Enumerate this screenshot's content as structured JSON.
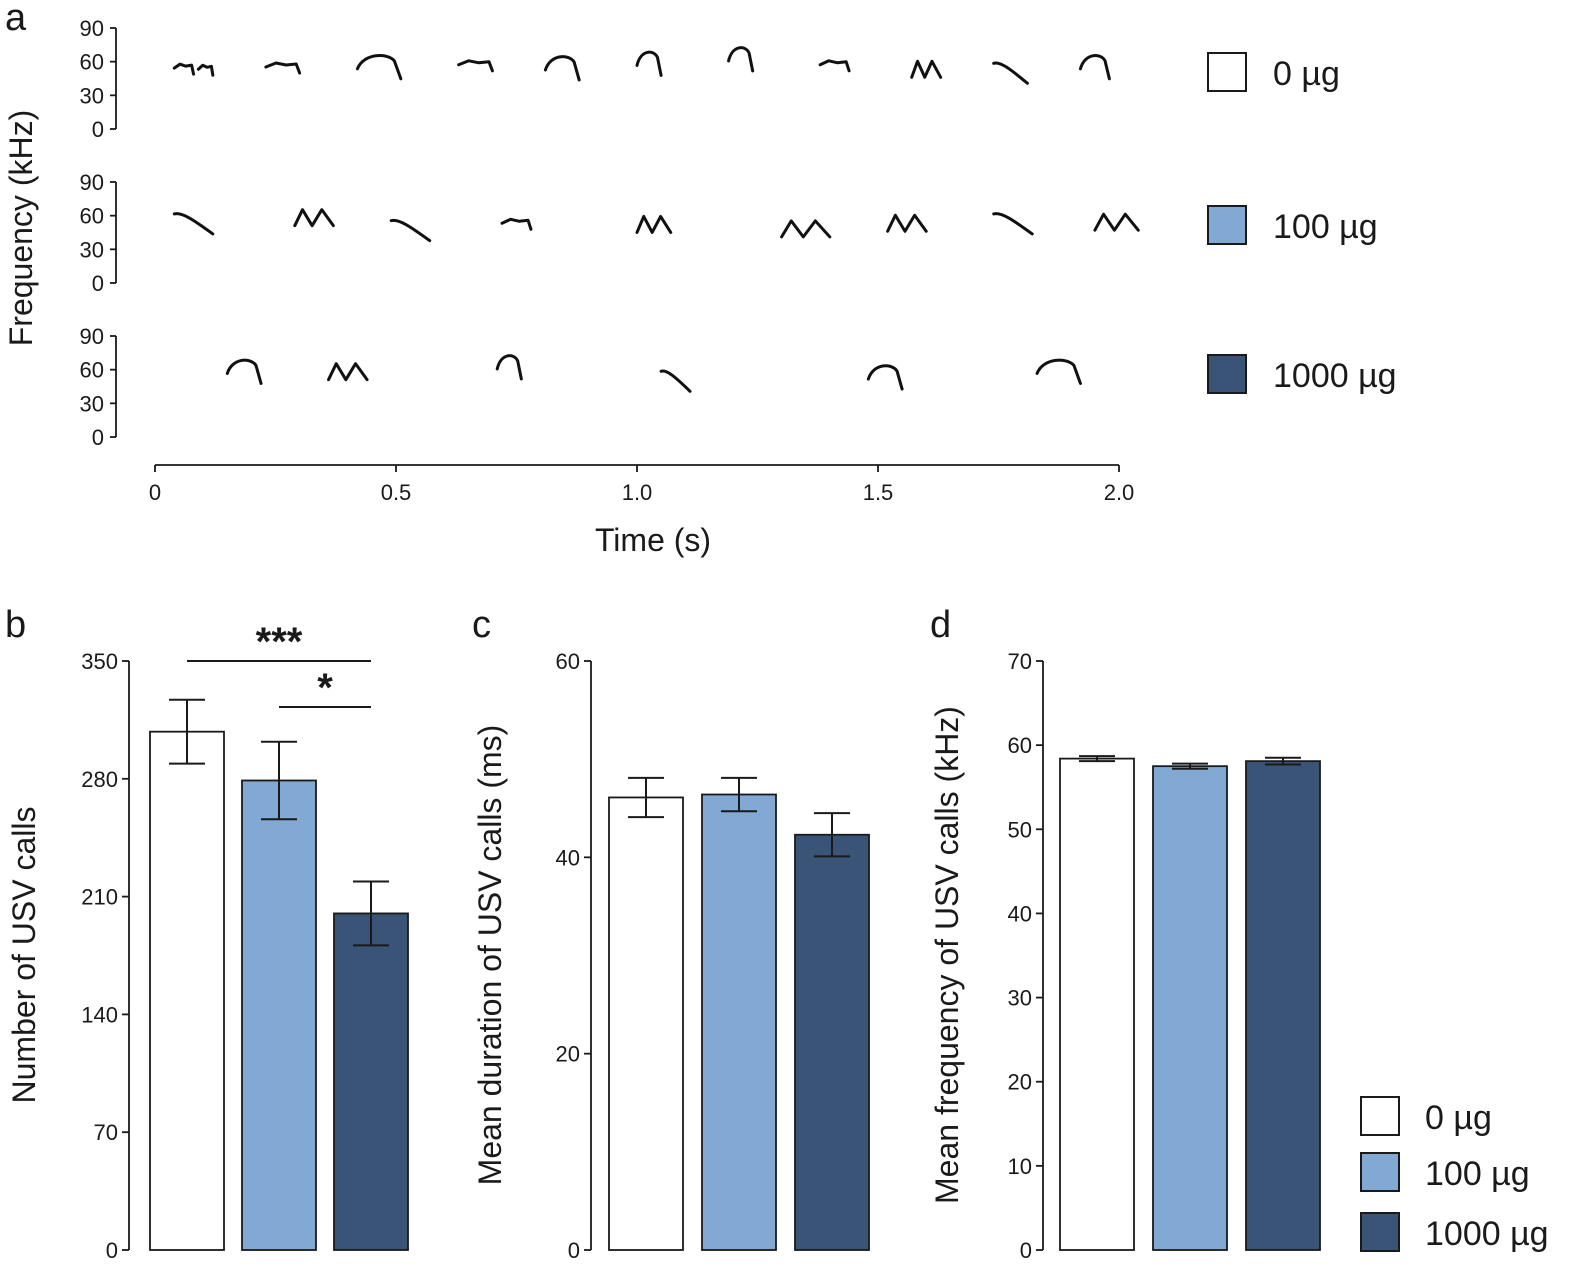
{
  "colors": {
    "g0": "#ffffff",
    "g100": "#82a8d4",
    "g1000": "#3a5477",
    "ink": "#1a1a1a"
  },
  "chart_data": [
    {
      "id": "a",
      "type": "spectrogram",
      "panel_label": "a",
      "xlabel": "Time (s)",
      "ylabel": "Frequency (kHz)",
      "xlim": [
        0,
        2.0
      ],
      "xticks": [
        0,
        0.5,
        1.0,
        1.5,
        2.0
      ],
      "xtick_labels": [
        "0",
        "0.5",
        "1.0",
        "1.5",
        "2.0"
      ],
      "ylim": [
        0,
        90
      ],
      "yticks": [
        0,
        30,
        60,
        90
      ],
      "ytick_labels": [
        "0",
        "30",
        "60",
        "90"
      ],
      "rows": [
        {
          "group": "0 µg",
          "calls": [
            {
              "t": 0.04,
              "d": 0.04,
              "f": 56,
              "shape": "flat"
            },
            {
              "t": 0.09,
              "d": 0.03,
              "f": 55,
              "shape": "flat"
            },
            {
              "t": 0.23,
              "d": 0.07,
              "f": 57,
              "shape": "flat"
            },
            {
              "t": 0.42,
              "d": 0.09,
              "f": 59,
              "shape": "arch"
            },
            {
              "t": 0.63,
              "d": 0.07,
              "f": 59,
              "shape": "flat"
            },
            {
              "t": 0.81,
              "d": 0.07,
              "f": 58,
              "shape": "arch"
            },
            {
              "t": 1.0,
              "d": 0.05,
              "f": 62,
              "shape": "arch"
            },
            {
              "t": 1.19,
              "d": 0.05,
              "f": 66,
              "shape": "arch"
            },
            {
              "t": 1.38,
              "d": 0.06,
              "f": 59,
              "shape": "flat"
            },
            {
              "t": 1.57,
              "d": 0.06,
              "f": 55,
              "shape": "dip"
            },
            {
              "t": 1.74,
              "d": 0.07,
              "f": 55,
              "shape": "down"
            },
            {
              "t": 1.92,
              "d": 0.06,
              "f": 59,
              "shape": "arch"
            }
          ]
        },
        {
          "group": "100 µg",
          "calls": [
            {
              "t": 0.04,
              "d": 0.08,
              "f": 58,
              "shape": "down"
            },
            {
              "t": 0.29,
              "d": 0.08,
              "f": 60,
              "shape": "dip"
            },
            {
              "t": 0.49,
              "d": 0.08,
              "f": 52,
              "shape": "down"
            },
            {
              "t": 0.72,
              "d": 0.06,
              "f": 55,
              "shape": "flat"
            },
            {
              "t": 1.0,
              "d": 0.07,
              "f": 54,
              "shape": "dip"
            },
            {
              "t": 1.3,
              "d": 0.1,
              "f": 50,
              "shape": "dip"
            },
            {
              "t": 1.52,
              "d": 0.08,
              "f": 55,
              "shape": "dip"
            },
            {
              "t": 1.74,
              "d": 0.08,
              "f": 58,
              "shape": "down"
            },
            {
              "t": 1.95,
              "d": 0.09,
              "f": 56,
              "shape": "dip"
            }
          ]
        },
        {
          "group": "1000 µg",
          "calls": [
            {
              "t": 0.15,
              "d": 0.07,
              "f": 62,
              "shape": "arch"
            },
            {
              "t": 0.36,
              "d": 0.08,
              "f": 60,
              "shape": "dip"
            },
            {
              "t": 0.71,
              "d": 0.05,
              "f": 66,
              "shape": "arch"
            },
            {
              "t": 1.05,
              "d": 0.06,
              "f": 55,
              "shape": "down"
            },
            {
              "t": 1.48,
              "d": 0.07,
              "f": 57,
              "shape": "arch"
            },
            {
              "t": 1.83,
              "d": 0.09,
              "f": 62,
              "shape": "arch"
            }
          ]
        }
      ],
      "legend": [
        "0 µg",
        "100 µg",
        "1000 µg"
      ]
    },
    {
      "id": "b",
      "type": "bar",
      "panel_label": "b",
      "categories": [
        "0 µg",
        "100 µg",
        "1000 µg"
      ],
      "values": [
        308,
        279,
        200
      ],
      "errors": [
        19,
        23,
        19
      ],
      "ylabel": "Number of USV calls",
      "ylim": [
        0,
        350
      ],
      "yticks": [
        0,
        70,
        140,
        210,
        280,
        350
      ],
      "ytick_labels": [
        "0",
        "70",
        "140",
        "210",
        "280",
        "350"
      ],
      "significance": [
        {
          "from": 0,
          "to": 2,
          "label": "***"
        },
        {
          "from": 1,
          "to": 2,
          "label": "*"
        }
      ]
    },
    {
      "id": "c",
      "type": "bar",
      "panel_label": "c",
      "categories": [
        "0 µg",
        "100 µg",
        "1000 µg"
      ],
      "values": [
        46.1,
        46.4,
        42.3
      ],
      "errors": [
        2.0,
        1.7,
        2.2
      ],
      "ylabel": "Mean duration of USV calls (ms)",
      "ylim": [
        0,
        60
      ],
      "yticks": [
        0,
        20,
        40,
        60
      ],
      "ytick_labels": [
        "0",
        "20",
        "40",
        "60"
      ]
    },
    {
      "id": "d",
      "type": "bar",
      "panel_label": "d",
      "categories": [
        "0 µg",
        "100 µg",
        "1000 µg"
      ],
      "values": [
        58.4,
        57.5,
        58.1
      ],
      "errors": [
        0.3,
        0.3,
        0.4
      ],
      "ylabel": "Mean frequency of USV calls (kHz)",
      "ylim": [
        0,
        70
      ],
      "yticks": [
        0,
        10,
        20,
        30,
        40,
        50,
        60,
        70
      ],
      "ytick_labels": [
        "0",
        "10",
        "20",
        "30",
        "40",
        "50",
        "60",
        "70"
      ],
      "legend": [
        "0 µg",
        "100 µg",
        "1000 µg"
      ]
    }
  ]
}
